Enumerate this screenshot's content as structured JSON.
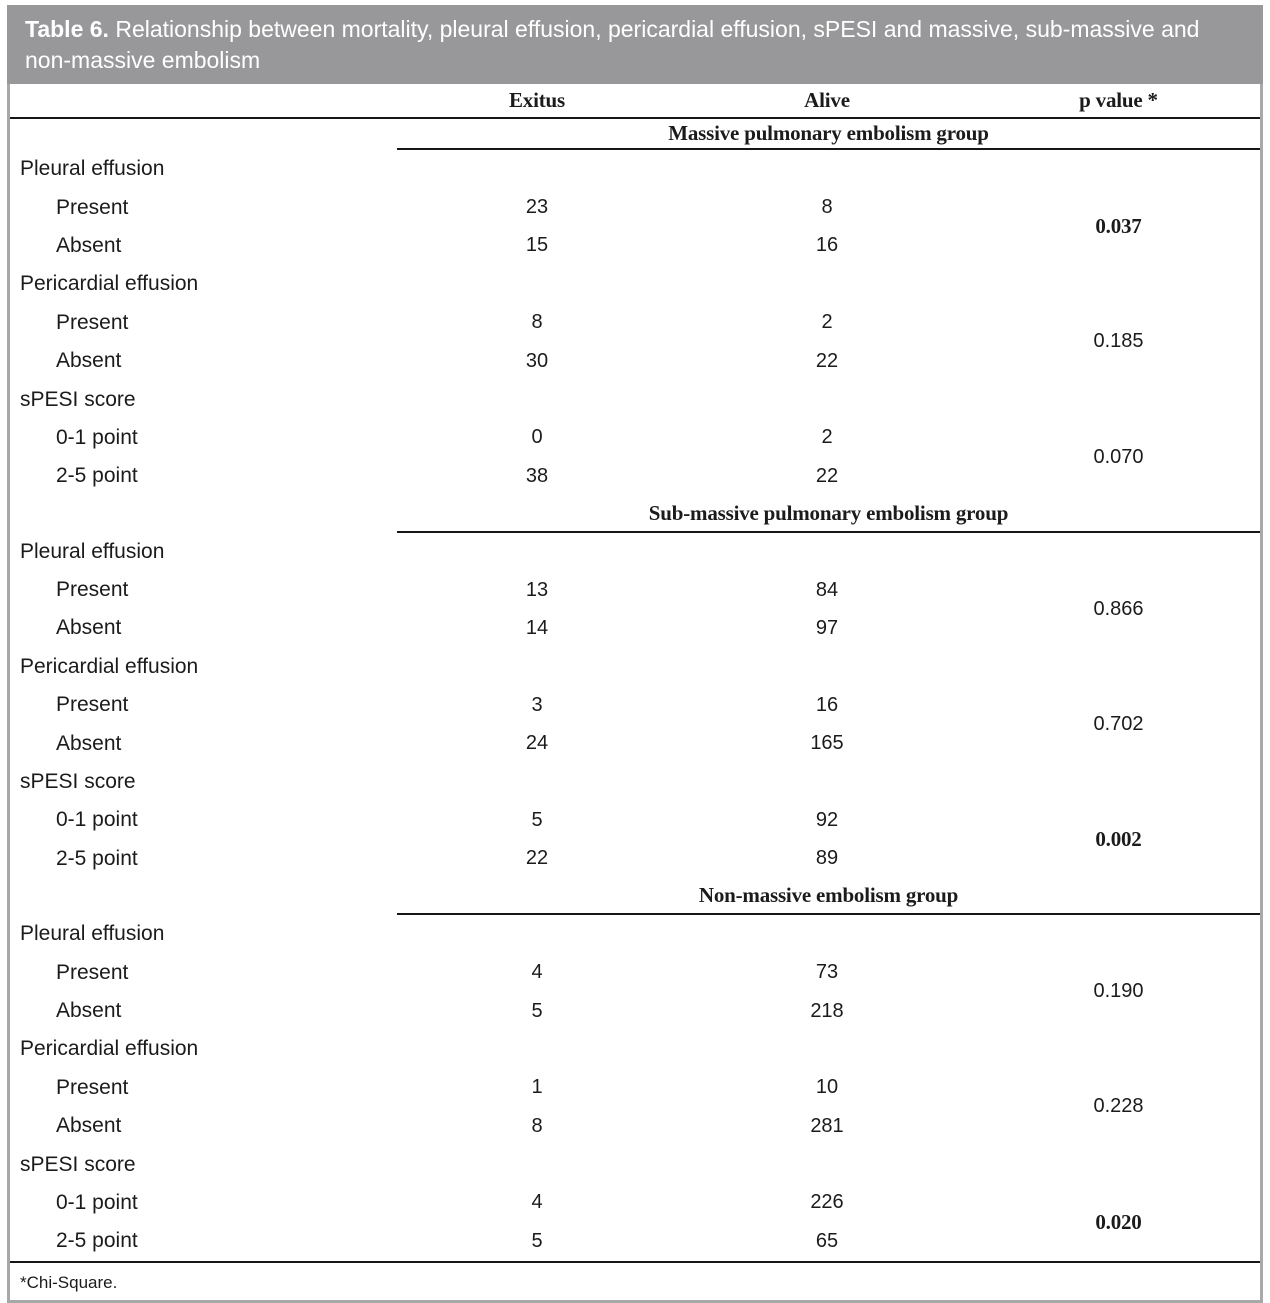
{
  "title": {
    "label": "Table 6.",
    "text": "Relationship between mortality, pleural effusion, pericardial effusion, sPESI and massive, sub-massive and non-massive embolism"
  },
  "columns": {
    "exitus": "Exitus",
    "alive": "Alive",
    "p": "p value *"
  },
  "colors": {
    "caption_bar": "#98989a",
    "caption_text": "#ffffff",
    "frame_border": "#a8a8a8",
    "rule": "#161616"
  },
  "groups": [
    {
      "heading": "Massive pulmonary embolism group",
      "categories": [
        {
          "name": "Pleural effusion",
          "rows": [
            {
              "label": "Present",
              "exitus": "23",
              "alive": "8"
            },
            {
              "label": "Absent",
              "exitus": "15",
              "alive": "16"
            }
          ],
          "p": "0.037",
          "p_bold": true
        },
        {
          "name": "Pericardial effusion",
          "rows": [
            {
              "label": "Present",
              "exitus": "8",
              "alive": "2"
            },
            {
              "label": "Absent",
              "exitus": "30",
              "alive": "22"
            }
          ],
          "p": "0.185",
          "p_bold": false
        },
        {
          "name": "sPESI score",
          "rows": [
            {
              "label": "0-1 point",
              "exitus": "0",
              "alive": "2"
            },
            {
              "label": "2-5 point",
              "exitus": "38",
              "alive": "22"
            }
          ],
          "p": "0.070",
          "p_bold": false
        }
      ]
    },
    {
      "heading": "Sub-massive pulmonary embolism group",
      "categories": [
        {
          "name": "Pleural effusion",
          "rows": [
            {
              "label": "Present",
              "exitus": "13",
              "alive": "84"
            },
            {
              "label": "Absent",
              "exitus": "14",
              "alive": "97"
            }
          ],
          "p": "0.866",
          "p_bold": false
        },
        {
          "name": "Pericardial effusion",
          "rows": [
            {
              "label": "Present",
              "exitus": "3",
              "alive": "16"
            },
            {
              "label": "Absent",
              "exitus": "24",
              "alive": "165"
            }
          ],
          "p": "0.702",
          "p_bold": false
        },
        {
          "name": "sPESI score",
          "rows": [
            {
              "label": "0-1 point",
              "exitus": "5",
              "alive": "92"
            },
            {
              "label": "2-5 point",
              "exitus": "22",
              "alive": "89"
            }
          ],
          "p": "0.002",
          "p_bold": true
        }
      ]
    },
    {
      "heading": "Non-massive embolism group",
      "categories": [
        {
          "name": "Pleural effusion",
          "rows": [
            {
              "label": "Present",
              "exitus": "4",
              "alive": "73"
            },
            {
              "label": "Absent",
              "exitus": "5",
              "alive": "218"
            }
          ],
          "p": "0.190",
          "p_bold": false
        },
        {
          "name": "Pericardial effusion",
          "rows": [
            {
              "label": "Present",
              "exitus": "1",
              "alive": "10"
            },
            {
              "label": "Absent",
              "exitus": "8",
              "alive": "281"
            }
          ],
          "p": "0.228",
          "p_bold": false
        },
        {
          "name": "sPESI score",
          "rows": [
            {
              "label": "0-1 point",
              "exitus": "4",
              "alive": "226"
            },
            {
              "label": "2-5 point",
              "exitus": "5",
              "alive": "65"
            }
          ],
          "p": "0.020",
          "p_bold": true
        }
      ]
    }
  ],
  "footnote": "*Chi-Square."
}
